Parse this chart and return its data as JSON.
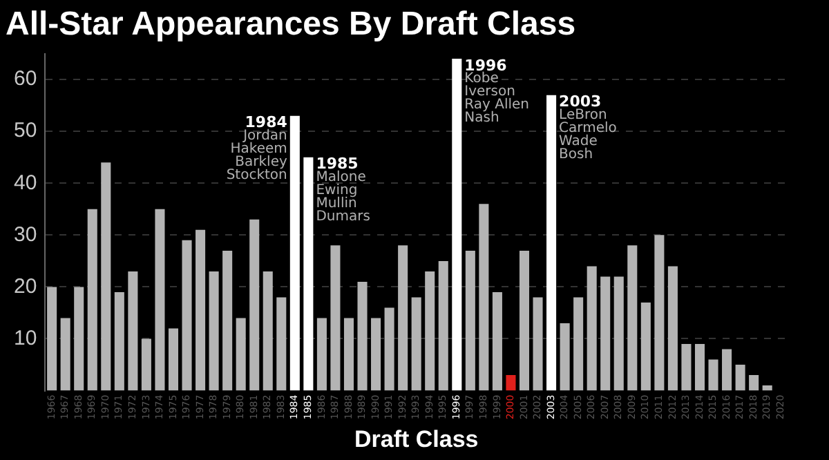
{
  "chart_data": {
    "type": "bar",
    "title": "All-Star Appearances By Draft Class",
    "xlabel": "Draft Class",
    "categories": [
      "1966",
      "1967",
      "1968",
      "1969",
      "1970",
      "1971",
      "1972",
      "1973",
      "1974",
      "1975",
      "1976",
      "1977",
      "1978",
      "1979",
      "1980",
      "1981",
      "1982",
      "1983",
      "1984",
      "1985",
      "1986",
      "1987",
      "1988",
      "1989",
      "1990",
      "1991",
      "1992",
      "1993",
      "1994",
      "1995",
      "1996",
      "1997",
      "1998",
      "1999",
      "2000",
      "2001",
      "2002",
      "2003",
      "2004",
      "2005",
      "2006",
      "2007",
      "2008",
      "2009",
      "2010",
      "2011",
      "2012",
      "2013",
      "2014",
      "2015",
      "2016",
      "2017",
      "2018",
      "2019",
      "2020"
    ],
    "values": [
      20,
      14,
      20,
      35,
      44,
      19,
      23,
      10,
      35,
      12,
      29,
      31,
      23,
      27,
      14,
      33,
      23,
      18,
      53,
      45,
      14,
      28,
      14,
      21,
      14,
      16,
      28,
      18,
      23,
      25,
      64,
      27,
      36,
      19,
      3,
      27,
      18,
      57,
      13,
      18,
      24,
      22,
      22,
      28,
      17,
      30,
      24,
      9,
      9,
      6,
      8,
      5,
      3,
      1,
      0
    ],
    "colors": [
      "#b4b4b4",
      "#b4b4b4",
      "#b4b4b4",
      "#b4b4b4",
      "#b4b4b4",
      "#b4b4b4",
      "#b4b4b4",
      "#b4b4b4",
      "#b4b4b4",
      "#b4b4b4",
      "#b4b4b4",
      "#b4b4b4",
      "#b4b4b4",
      "#b4b4b4",
      "#b4b4b4",
      "#b4b4b4",
      "#b4b4b4",
      "#b4b4b4",
      "#ffffff",
      "#ffffff",
      "#b4b4b4",
      "#b4b4b4",
      "#b4b4b4",
      "#b4b4b4",
      "#b4b4b4",
      "#b4b4b4",
      "#b4b4b4",
      "#b4b4b4",
      "#b4b4b4",
      "#b4b4b4",
      "#ffffff",
      "#b4b4b4",
      "#b4b4b4",
      "#b4b4b4",
      "#e0201c",
      "#b4b4b4",
      "#b4b4b4",
      "#ffffff",
      "#b4b4b4",
      "#b4b4b4",
      "#b4b4b4",
      "#b4b4b4",
      "#b4b4b4",
      "#b4b4b4",
      "#b4b4b4",
      "#b4b4b4",
      "#b4b4b4",
      "#b4b4b4",
      "#b4b4b4",
      "#b4b4b4",
      "#b4b4b4",
      "#b4b4b4",
      "#b4b4b4",
      "#b4b4b4",
      "#b4b4b4"
    ],
    "ylim": [
      0,
      65
    ],
    "yticks": [
      10,
      20,
      30,
      40,
      50,
      60
    ],
    "grid": "y",
    "legend": false,
    "annotations": [
      {
        "text": "1984\nJordan\nHakeem\nBarkley\nStockton",
        "x": "1984",
        "y": 53
      },
      {
        "text": "1985\nMalone\nEwing\nMullin\nDumars",
        "x": "1985",
        "y": 45
      },
      {
        "text": "1996\nKobe\nIverson\nRay Allen\nNash",
        "x": "1996",
        "y": 64
      },
      {
        "text": "2003\nLeBron\nCarmelo\nWade\nBosh",
        "x": "2003",
        "y": 57
      }
    ]
  }
}
